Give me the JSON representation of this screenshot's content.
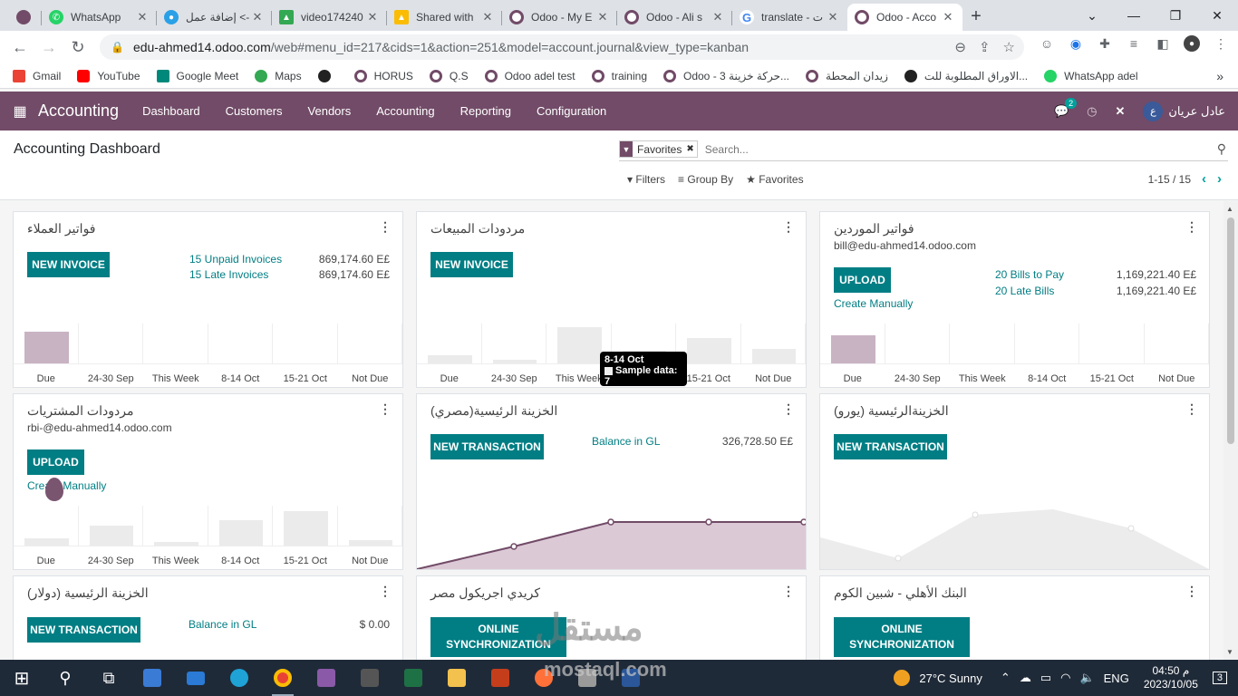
{
  "browser": {
    "tabs": [
      {
        "title": "WhatsApp",
        "icon": "whatsapp-icon",
        "color": "#25d366"
      },
      {
        "title": "إضافة عمل <-",
        "icon": "mostaql-icon",
        "color": "#2aa0e6"
      },
      {
        "title": "video174240",
        "icon": "drive-icon",
        "color": "#34a853"
      },
      {
        "title": "Shared with",
        "icon": "drive-icon",
        "color": "#fbbc04"
      },
      {
        "title": "Odoo - My E",
        "icon": "odoo-icon",
        "color": "#714b67"
      },
      {
        "title": "Odoo - Ali s",
        "icon": "odoo-icon",
        "color": "#714b67"
      },
      {
        "title": "translate - ت",
        "icon": "google-icon",
        "color": "#4285f4"
      },
      {
        "title": "Odoo - Acco",
        "icon": "odoo-icon",
        "color": "#714b67"
      }
    ],
    "url_host": "edu-ahmed14.odoo.com",
    "url_path": "/web#menu_id=217&cids=1&action=251&model=account.journal&view_type=kanban",
    "bookmarks": [
      "Gmail",
      "YouTube",
      "Google Meet",
      "Maps",
      "HORUS",
      "Q.S",
      "Odoo adel test",
      "training",
      "Odoo - حركة خزينة 3...",
      "زيدان المحطة",
      "الاوراق المطلوبة للت...",
      "WhatsApp adel"
    ]
  },
  "odoo": {
    "app": "Accounting",
    "menu": [
      "Dashboard",
      "Customers",
      "Vendors",
      "Accounting",
      "Reporting",
      "Configuration"
    ],
    "messages_count": "2",
    "user": "عادل عريان",
    "avatar": "ع"
  },
  "control": {
    "title": "Accounting Dashboard",
    "facet": "Favorites",
    "placeholder": "Search...",
    "filters": "Filters",
    "groupby": "Group By",
    "favorites": "Favorites",
    "pager": "1-15 / 15"
  },
  "chart_labels": [
    "Due",
    "24-30 Sep",
    "This Week",
    "8-14 Oct",
    "15-21 Oct",
    "Not Due"
  ],
  "cards": {
    "c1": {
      "title": "فواتير العملاء",
      "btn": "NEW INVOICE",
      "l1": "15 Unpaid Invoices",
      "a1": "869,174.60 E£",
      "l2": "15 Late Invoices",
      "a2": "869,174.60 E£"
    },
    "c2": {
      "title": "مردودات المبيعات",
      "btn": "NEW INVOICE"
    },
    "c3": {
      "title": "فواتير الموردين",
      "email": "bill@edu-ahmed14.odoo.com",
      "btn": "UPLOAD",
      "create": "Create Manually",
      "l1": "20 Bills to Pay",
      "a1": "1,169,221.40 E£",
      "l2": "20 Late Bills",
      "a2": "1,169,221.40 E£"
    },
    "c4": {
      "title": "مردودات المشتريات",
      "email": "rbi-@edu-ahmed14.odoo.com",
      "btn": "UPLOAD",
      "create": "Create Manually"
    },
    "c5": {
      "title": "الخزينة الرئيسية(مصري)",
      "btn": "NEW TRANSACTION",
      "l1": "Balance in GL",
      "a1": "326,728.50 E£"
    },
    "c6": {
      "title": "الخزينةالرئيسية (يورو)",
      "btn": "NEW TRANSACTION"
    },
    "c7": {
      "title": "الخزينة الرئيسية (دولار)",
      "btn": "NEW TRANSACTION",
      "l1": "Balance in GL",
      "a1": "$ 0.00"
    },
    "c8": {
      "title": "كريدي اجريكول مصر",
      "btn": "ONLINE SYNCHRONIZATION"
    },
    "c9": {
      "title": "البنك الأهلي - شبين الكوم",
      "btn": "ONLINE SYNCHRONIZATION"
    }
  },
  "tooltip": {
    "title": "8-14 Oct",
    "text": "Sample data: 7"
  },
  "watermark": {
    "main": "مستقل",
    "sub": "mostaql.com"
  },
  "taskbar": {
    "weather": "27°C  Sunny",
    "lang": "ENG",
    "time": "04:50 م",
    "date": "2023/10/05",
    "notif": "3"
  }
}
